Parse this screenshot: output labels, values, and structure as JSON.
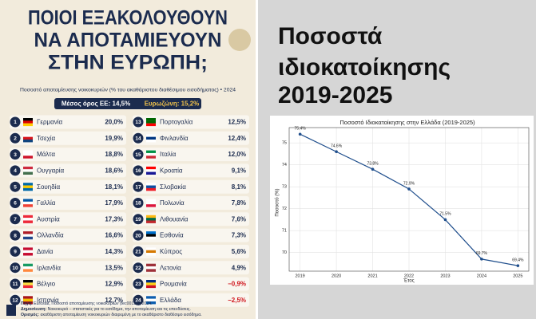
{
  "infographic": {
    "title": [
      "ΠΟΙΟΙ ΕΞΑΚΟΛΟΥΘΟΥΝ",
      "ΝΑ ΑΠΟΤΑΜΙΕΥΟΥΝ",
      "ΣΤΗΝ ΕΥΡΩΠΗ;"
    ],
    "subtitle": "Ποσοστό αποταμίευσης νοικοκυριών (% του ακαθάριστου διαθέσιμου εισοδήματος) • 2024",
    "banner": [
      "Μέσος όρος ΕΕ: 14,5%",
      "Ευρωζώνη: 15,2%"
    ],
    "rows": [
      [
        "1",
        "Γερμανία",
        "20,0%"
      ],
      [
        "2",
        "Τσεχία",
        "19,9%"
      ],
      [
        "3",
        "Μάλτα",
        "18,8%"
      ],
      [
        "4",
        "Ουγγαρία",
        "18,6%"
      ],
      [
        "5",
        "Σουηδία",
        "18,1%"
      ],
      [
        "6",
        "Γαλλία",
        "17,9%"
      ],
      [
        "7",
        "Αυστρία",
        "17,3%"
      ],
      [
        "8",
        "Ολλανδία",
        "16,6%"
      ],
      [
        "9",
        "Δανία",
        "14,3%"
      ],
      [
        "10",
        "Ιρλανδία",
        "13,5%"
      ],
      [
        "11",
        "Βέλγιο",
        "12,9%"
      ],
      [
        "12",
        "Ισπανία",
        "12,7%"
      ],
      [
        "13",
        "Πορτογαλία",
        "12,5%"
      ],
      [
        "14",
        "Φινλανδία",
        "12,4%"
      ],
      [
        "15",
        "Ιταλία",
        "12,0%"
      ],
      [
        "16",
        "Κροατία",
        "9,1%"
      ],
      [
        "17",
        "Σλοβακία",
        "8,1%"
      ],
      [
        "18",
        "Πολωνία",
        "7,8%"
      ],
      [
        "19",
        "Λιθουανία",
        "7,6%"
      ],
      [
        "20",
        "Εσθονία",
        "7,3%"
      ],
      [
        "21",
        "Κύπρος",
        "5,6%"
      ],
      [
        "22",
        "Λετονία",
        "4,9%"
      ],
      [
        "23",
        "Ρουμανία",
        "−0,9%"
      ],
      [
        "24",
        "Ελλάδα",
        "−2,5%"
      ]
    ],
    "footer": [
      [
        "Πηγή:",
        "Eurostat, Ποσοστό αποταμίευσης νοικοκυριών (tec00131), 2024."
      ],
      [
        "Δημοσίευση:",
        "Νοικοκυριό – στατιστικές για το εισόδημα, την αποταμίευση και τις επενδύσεις."
      ],
      [
        "Ορισμός:",
        "ακαθάριστη αποταμίευση νοικοκυριών διαιρεμένη με το ακαθάριστο διαθέσιμο εισόδημα."
      ]
    ]
  },
  "heading": [
    "Ποσοστά",
    "ιδιοκατοίκησης",
    "2019-2025"
  ],
  "chart_data": {
    "type": "line",
    "title": "Ποσοστό Ιδιοκατοίκησης στην Ελλάδα (2019-2025)",
    "x_label": "Έτος",
    "y_label": "Ποσοστό (%)",
    "x": [
      2019,
      2020,
      2021,
      2022,
      2023,
      2024,
      2025
    ],
    "series": [
      {
        "color": "#1f4e8c",
        "values": [
          75.4,
          74.6,
          73.8,
          72.9,
          71.5,
          69.7,
          69.4
        ],
        "value_labels": [
          "75.4%",
          "74.6%",
          "73.8%",
          "72.9%",
          "71.5%",
          "69.7%",
          "69.4%"
        ]
      }
    ],
    "xlim": [
      2018.7,
      2025.3
    ],
    "xticks": [
      2019,
      2020,
      2021,
      2022,
      2023,
      2024,
      2025
    ],
    "ylim": [
      69.15,
      75.7
    ],
    "yticks": [
      70,
      71,
      72,
      73,
      74,
      75
    ],
    "grid": true
  }
}
